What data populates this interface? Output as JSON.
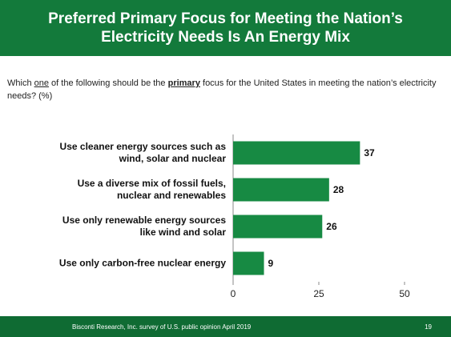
{
  "header": {
    "title": "Preferred Primary Focus for Meeting the Nation’s Electricity Needs Is An Energy Mix"
  },
  "question": [
    "Which ",
    "one",
    " of the following should be the ",
    "primary",
    " focus for the United States in meeting the nation’s electricity needs? (%)"
  ],
  "chart_data": {
    "type": "bar",
    "orientation": "horizontal",
    "categories": [
      "Use cleaner energy sources such as wind, solar and nuclear",
      "Use a diverse mix of fossil fuels, nuclear and renewables",
      "Use only renewable energy sources like wind and solar",
      "Use only carbon-free nuclear energy"
    ],
    "values": [
      37,
      28,
      26,
      9
    ],
    "color": "#178a43",
    "xlim": [
      0,
      50
    ],
    "xticks": [
      0,
      25,
      50
    ]
  },
  "footer": {
    "source": "Bisconti Research, Inc. survey of U.S. public opinion April 2019",
    "page": "19"
  }
}
